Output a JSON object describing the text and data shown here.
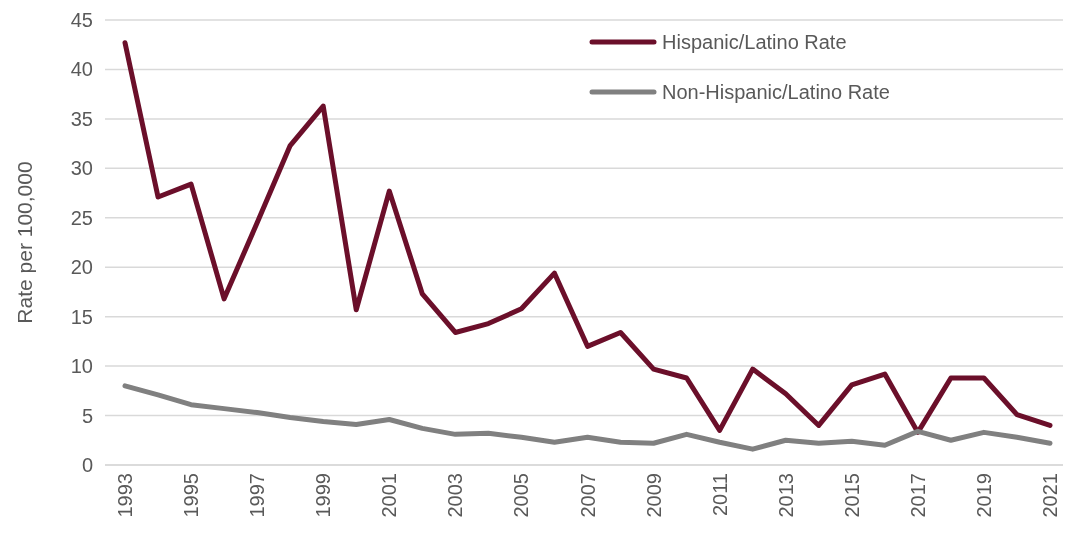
{
  "chart_data": {
    "type": "line",
    "ylabel": "Rate per 100,000",
    "categories": [
      "1993",
      null,
      "1995",
      null,
      "1997",
      null,
      "1999",
      null,
      "2001",
      null,
      "2003",
      null,
      "2005",
      null,
      "2007",
      null,
      "2009",
      null,
      "2011",
      null,
      "2013",
      null,
      "2015",
      null,
      "2017",
      null,
      "2019",
      null,
      "2021"
    ],
    "series": [
      {
        "name": "Hispanic/Latino Rate",
        "color": "#6b0f2a",
        "values": [
          42.7,
          27.1,
          28.4,
          16.8,
          24.5,
          32.3,
          36.3,
          15.7,
          27.7,
          17.3,
          13.4,
          14.3,
          15.8,
          19.4,
          12.0,
          13.4,
          9.7,
          8.8,
          3.5,
          9.7,
          7.2,
          4.0,
          8.1,
          9.2,
          3.3,
          8.8,
          8.8,
          5.1,
          4.0
        ]
      },
      {
        "name": "Non-Hispanic/Latino Rate",
        "color": "#808080",
        "values": [
          8.0,
          7.1,
          6.1,
          5.7,
          5.3,
          4.8,
          4.4,
          4.1,
          4.6,
          3.7,
          3.1,
          3.2,
          2.8,
          2.3,
          2.8,
          2.3,
          2.2,
          3.1,
          2.3,
          1.6,
          2.5,
          2.2,
          2.4,
          2.0,
          3.4,
          2.5,
          3.3,
          2.8,
          2.2
        ]
      }
    ],
    "ylim": [
      0,
      45
    ],
    "yticks": [
      0,
      5,
      10,
      15,
      20,
      25,
      30,
      35,
      40,
      45
    ],
    "grid": "y",
    "legend": "top right",
    "line_style": "solid",
    "marker": "none"
  }
}
